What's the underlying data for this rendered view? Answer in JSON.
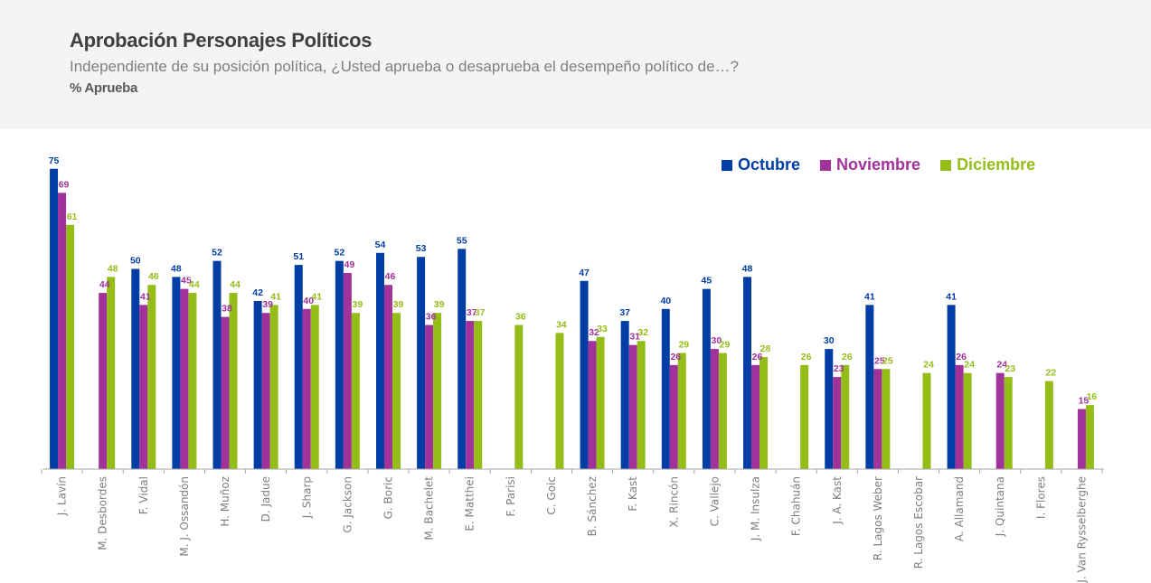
{
  "header": {
    "title": "Aprobación Personajes Políticos",
    "subtitle": "Independiente de su posición política, ¿Usted aprueba o desaprueba el desempeño político de…?",
    "unit_label": "% Aprueba"
  },
  "colors": {
    "octubre": "#003da5",
    "noviembre": "#a0329a",
    "diciembre": "#95bd17",
    "axis": "#a6a6a6",
    "tick_label": "#7f7f7f"
  },
  "chart_data": {
    "type": "bar",
    "title": "Aprobación Personajes Políticos",
    "subtitle": "Independiente de su posición política, ¿Usted aprueba o desaprueba el desempeño político de…?",
    "xlabel": "",
    "ylabel": "% Aprueba",
    "ylim": [
      0,
      80
    ],
    "grid": false,
    "legend_position": "top-right",
    "categories": [
      "J. Lavín",
      "M. Desbordes",
      "F. Vidal",
      "M. J. Ossandón",
      "H. Muñoz",
      "D. Jadue",
      "J. Sharp",
      "G. Jackson",
      "G. Boric",
      "M. Bachelet",
      "E. Matthei",
      "F. Parisi",
      "C. Goic",
      "B. Sánchez",
      "F. Kast",
      "X. Rincón",
      "C. Vallejo",
      "J. M. Insulza",
      "F. Chahuán",
      "J. A. Kast",
      "R. Lagos Weber",
      "R. Lagos Escobar",
      "A. Allamand",
      "J. Quintana",
      "I. Flores",
      "J. Van Rysselberghe"
    ],
    "series": [
      {
        "name": "Octubre",
        "color": "#003da5",
        "values": [
          75,
          null,
          50,
          48,
          52,
          42,
          51,
          52,
          54,
          53,
          55,
          null,
          null,
          47,
          37,
          40,
          45,
          48,
          null,
          30,
          41,
          null,
          41,
          null,
          null,
          null
        ]
      },
      {
        "name": "Noviembre",
        "color": "#a0329a",
        "values": [
          69,
          44,
          41,
          45,
          38,
          39,
          40,
          49,
          46,
          36,
          37,
          null,
          null,
          32,
          31,
          26,
          30,
          26,
          null,
          23,
          25,
          null,
          26,
          24,
          null,
          15
        ]
      },
      {
        "name": "Diciembre",
        "color": "#95bd17",
        "values": [
          61,
          48,
          46,
          44,
          44,
          41,
          41,
          39,
          39,
          39,
          37,
          36,
          34,
          33,
          32,
          29,
          29,
          28,
          26,
          26,
          25,
          24,
          24,
          23,
          22,
          16
        ]
      }
    ]
  }
}
